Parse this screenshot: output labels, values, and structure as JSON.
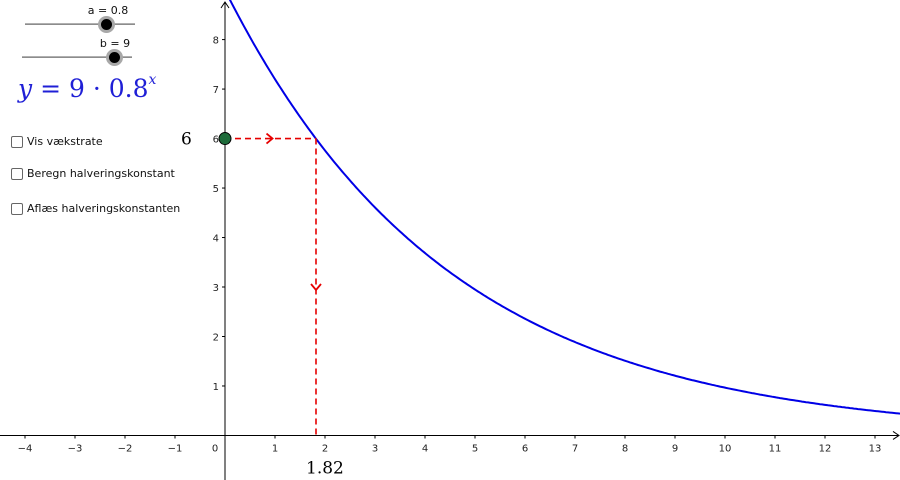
{
  "sliders": {
    "a": {
      "label": "a = 0.8",
      "value": 0.8
    },
    "b": {
      "label": "b = 9",
      "value": 9
    }
  },
  "formula": {
    "lhs": "y",
    "equals": "=",
    "base": "9",
    "dot": "·",
    "factor": "0.8",
    "exponent": "x"
  },
  "checkboxes": [
    {
      "label": "Vis vækstrate",
      "checked": false
    },
    {
      "label": "Beregn halveringskonstant",
      "checked": false
    },
    {
      "label": "Aflæs halveringskonstanten",
      "checked": false
    }
  ],
  "chart_data": {
    "type": "line",
    "function": {
      "a": 0.8,
      "b": 9,
      "color": "#0000e6"
    },
    "xlim": [
      -4.5,
      13.5
    ],
    "ylim": [
      -0.9,
      8.8
    ],
    "x_ticks": [
      -4,
      -3,
      -2,
      -1,
      0,
      1,
      2,
      3,
      4,
      5,
      6,
      7,
      8,
      9,
      10,
      11,
      12,
      13
    ],
    "y_ticks": [
      1,
      2,
      3,
      4,
      5,
      6,
      7,
      8
    ],
    "origin_label": "0",
    "grid": false,
    "point": {
      "x": 0,
      "y": 6,
      "color": "#1e6b3a"
    },
    "point_label": "6",
    "intersection": {
      "x": 1.82,
      "y": 6
    },
    "intersection_label": "1.82",
    "guide_color": "#e60000"
  }
}
